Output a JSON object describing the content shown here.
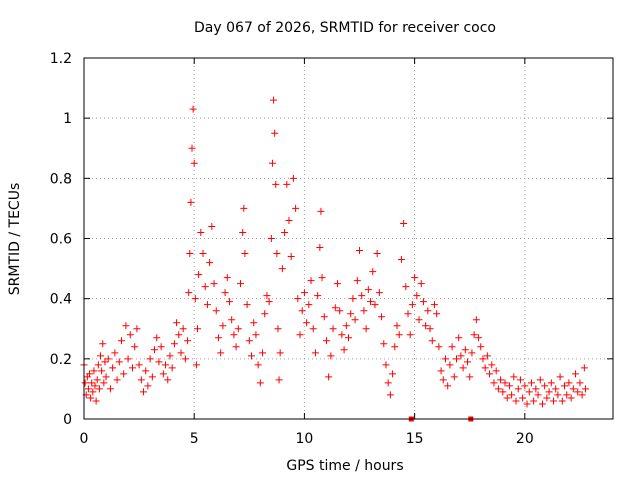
{
  "chart_data": {
    "type": "scatter",
    "title": "Day 067 of 2026, SRMTID for receiver coco",
    "xlabel": "GPS time / hours",
    "ylabel": "SRMTID / TECUs",
    "xlim": [
      0,
      24
    ],
    "ylim": [
      0,
      1.2
    ],
    "xticks": [
      0,
      5,
      10,
      15,
      20
    ],
    "xtick_labels": [
      "0",
      "5",
      "10",
      "15",
      "20"
    ],
    "yticks": [
      0,
      0.2,
      0.4,
      0.6,
      0.8,
      1.0,
      1.2
    ],
    "ytick_labels": [
      "0",
      "0.2",
      "0.4",
      "0.6",
      "0.8",
      "1",
      "1.2"
    ],
    "grid": true,
    "marker": "+",
    "series_color": "#ff0000",
    "series": [
      {
        "name": "SRMTID",
        "points": [
          [
            0.0,
            0.18
          ],
          [
            0.05,
            0.12
          ],
          [
            0.1,
            0.08
          ],
          [
            0.15,
            0.14
          ],
          [
            0.2,
            0.1
          ],
          [
            0.25,
            0.15
          ],
          [
            0.3,
            0.07
          ],
          [
            0.35,
            0.12
          ],
          [
            0.4,
            0.09
          ],
          [
            0.45,
            0.16
          ],
          [
            0.5,
            0.11
          ],
          [
            0.55,
            0.06
          ],
          [
            0.6,
            0.13
          ],
          [
            0.65,
            0.18
          ],
          [
            0.7,
            0.1
          ],
          [
            0.75,
            0.21
          ],
          [
            0.8,
            0.16
          ],
          [
            0.85,
            0.25
          ],
          [
            0.9,
            0.12
          ],
          [
            0.95,
            0.19
          ],
          [
            1.0,
            0.14
          ],
          [
            1.1,
            0.2
          ],
          [
            1.2,
            0.1
          ],
          [
            1.3,
            0.17
          ],
          [
            1.4,
            0.22
          ],
          [
            1.5,
            0.13
          ],
          [
            1.6,
            0.19
          ],
          [
            1.7,
            0.26
          ],
          [
            1.8,
            0.15
          ],
          [
            1.9,
            0.31
          ],
          [
            2.0,
            0.2
          ],
          [
            2.1,
            0.28
          ],
          [
            2.2,
            0.17
          ],
          [
            2.3,
            0.24
          ],
          [
            2.4,
            0.3
          ],
          [
            2.5,
            0.18
          ],
          [
            2.6,
            0.13
          ],
          [
            2.7,
            0.09
          ],
          [
            2.8,
            0.16
          ],
          [
            2.9,
            0.11
          ],
          [
            3.0,
            0.2
          ],
          [
            3.1,
            0.14
          ],
          [
            3.2,
            0.23
          ],
          [
            3.3,
            0.27
          ],
          [
            3.4,
            0.19
          ],
          [
            3.5,
            0.24
          ],
          [
            3.6,
            0.15
          ],
          [
            3.7,
            0.18
          ],
          [
            3.8,
            0.13
          ],
          [
            3.9,
            0.21
          ],
          [
            4.0,
            0.17
          ],
          [
            4.1,
            0.25
          ],
          [
            4.2,
            0.32
          ],
          [
            4.3,
            0.28
          ],
          [
            4.4,
            0.22
          ],
          [
            4.5,
            0.3
          ],
          [
            4.6,
            0.2
          ],
          [
            4.7,
            0.26
          ],
          [
            4.75,
            0.42
          ],
          [
            4.8,
            0.55
          ],
          [
            4.85,
            0.72
          ],
          [
            4.9,
            0.9
          ],
          [
            4.95,
            1.03
          ],
          [
            5.0,
            0.85
          ],
          [
            5.05,
            0.4
          ],
          [
            5.1,
            0.18
          ],
          [
            5.15,
            0.3
          ],
          [
            5.2,
            0.48
          ],
          [
            5.3,
            0.62
          ],
          [
            5.4,
            0.55
          ],
          [
            5.5,
            0.44
          ],
          [
            5.6,
            0.38
          ],
          [
            5.7,
            0.52
          ],
          [
            5.8,
            0.64
          ],
          [
            5.9,
            0.45
          ],
          [
            6.0,
            0.36
          ],
          [
            6.1,
            0.27
          ],
          [
            6.2,
            0.22
          ],
          [
            6.3,
            0.31
          ],
          [
            6.4,
            0.42
          ],
          [
            6.5,
            0.47
          ],
          [
            6.6,
            0.39
          ],
          [
            6.7,
            0.33
          ],
          [
            6.8,
            0.28
          ],
          [
            6.9,
            0.24
          ],
          [
            7.0,
            0.3
          ],
          [
            7.1,
            0.45
          ],
          [
            7.2,
            0.62
          ],
          [
            7.25,
            0.7
          ],
          [
            7.3,
            0.55
          ],
          [
            7.4,
            0.38
          ],
          [
            7.5,
            0.26
          ],
          [
            7.6,
            0.21
          ],
          [
            7.7,
            0.32
          ],
          [
            7.8,
            0.28
          ],
          [
            7.9,
            0.18
          ],
          [
            8.0,
            0.12
          ],
          [
            8.1,
            0.22
          ],
          [
            8.2,
            0.35
          ],
          [
            8.3,
            0.41
          ],
          [
            8.4,
            0.39
          ],
          [
            8.5,
            0.6
          ],
          [
            8.55,
            0.85
          ],
          [
            8.6,
            1.06
          ],
          [
            8.65,
            0.95
          ],
          [
            8.7,
            0.78
          ],
          [
            8.75,
            0.55
          ],
          [
            8.8,
            0.3
          ],
          [
            8.85,
            0.13
          ],
          [
            8.9,
            0.22
          ],
          [
            9.0,
            0.5
          ],
          [
            9.1,
            0.62
          ],
          [
            9.2,
            0.78
          ],
          [
            9.3,
            0.66
          ],
          [
            9.4,
            0.54
          ],
          [
            9.5,
            0.8
          ],
          [
            9.6,
            0.7
          ],
          [
            9.7,
            0.4
          ],
          [
            9.8,
            0.28
          ],
          [
            9.9,
            0.36
          ],
          [
            10.0,
            0.42
          ],
          [
            10.1,
            0.32
          ],
          [
            10.2,
            0.38
          ],
          [
            10.3,
            0.46
          ],
          [
            10.4,
            0.3
          ],
          [
            10.5,
            0.22
          ],
          [
            10.6,
            0.41
          ],
          [
            10.7,
            0.57
          ],
          [
            10.75,
            0.69
          ],
          [
            10.8,
            0.47
          ],
          [
            10.9,
            0.34
          ],
          [
            11.0,
            0.26
          ],
          [
            11.1,
            0.14
          ],
          [
            11.2,
            0.21
          ],
          [
            11.3,
            0.3
          ],
          [
            11.4,
            0.37
          ],
          [
            11.5,
            0.45
          ],
          [
            11.6,
            0.36
          ],
          [
            11.7,
            0.28
          ],
          [
            11.8,
            0.23
          ],
          [
            11.9,
            0.31
          ],
          [
            12.0,
            0.27
          ],
          [
            12.1,
            0.35
          ],
          [
            12.2,
            0.4
          ],
          [
            12.3,
            0.33
          ],
          [
            12.4,
            0.46
          ],
          [
            12.5,
            0.56
          ],
          [
            12.6,
            0.41
          ],
          [
            12.7,
            0.36
          ],
          [
            12.8,
            0.3
          ],
          [
            12.9,
            0.43
          ],
          [
            13.0,
            0.39
          ],
          [
            13.1,
            0.49
          ],
          [
            13.2,
            0.38
          ],
          [
            13.3,
            0.55
          ],
          [
            13.4,
            0.42
          ],
          [
            13.5,
            0.34
          ],
          [
            13.6,
            0.25
          ],
          [
            13.7,
            0.18
          ],
          [
            13.8,
            0.12
          ],
          [
            13.9,
            0.08
          ],
          [
            14.0,
            0.15
          ],
          [
            14.1,
            0.24
          ],
          [
            14.2,
            0.31
          ],
          [
            14.3,
            0.28
          ],
          [
            14.4,
            0.53
          ],
          [
            14.5,
            0.65
          ],
          [
            14.6,
            0.44
          ],
          [
            14.7,
            0.35
          ],
          [
            14.8,
            0.28
          ],
          [
            14.9,
            0.38
          ],
          [
            15.0,
            0.47
          ],
          [
            15.1,
            0.41
          ],
          [
            15.2,
            0.33
          ],
          [
            15.3,
            0.45
          ],
          [
            15.4,
            0.39
          ],
          [
            15.5,
            0.31
          ],
          [
            15.6,
            0.36
          ],
          [
            15.7,
            0.3
          ],
          [
            15.8,
            0.26
          ],
          [
            15.9,
            0.38
          ],
          [
            16.0,
            0.35
          ],
          [
            16.1,
            0.24
          ],
          [
            16.2,
            0.16
          ],
          [
            16.3,
            0.13
          ],
          [
            16.4,
            0.2
          ],
          [
            16.5,
            0.11
          ],
          [
            16.6,
            0.18
          ],
          [
            16.7,
            0.24
          ],
          [
            16.8,
            0.14
          ],
          [
            16.9,
            0.2
          ],
          [
            17.0,
            0.27
          ],
          [
            17.1,
            0.21
          ],
          [
            17.2,
            0.17
          ],
          [
            17.3,
            0.23
          ],
          [
            17.4,
            0.19
          ],
          [
            17.5,
            0.14
          ],
          [
            17.6,
            0.22
          ],
          [
            17.7,
            0.28
          ],
          [
            17.8,
            0.33
          ],
          [
            17.9,
            0.27
          ],
          [
            18.0,
            0.24
          ],
          [
            18.1,
            0.2
          ],
          [
            18.2,
            0.17
          ],
          [
            18.3,
            0.21
          ],
          [
            18.4,
            0.15
          ],
          [
            18.5,
            0.18
          ],
          [
            18.6,
            0.12
          ],
          [
            18.7,
            0.16
          ],
          [
            18.8,
            0.1
          ],
          [
            18.9,
            0.13
          ],
          [
            19.0,
            0.09
          ],
          [
            19.1,
            0.12
          ],
          [
            19.2,
            0.07
          ],
          [
            19.3,
            0.11
          ],
          [
            19.4,
            0.08
          ],
          [
            19.5,
            0.14
          ],
          [
            19.6,
            0.06
          ],
          [
            19.7,
            0.1
          ],
          [
            19.8,
            0.13
          ],
          [
            19.9,
            0.07
          ],
          [
            20.0,
            0.11
          ],
          [
            20.1,
            0.05
          ],
          [
            20.2,
            0.09
          ],
          [
            20.3,
            0.12
          ],
          [
            20.4,
            0.06
          ],
          [
            20.5,
            0.1
          ],
          [
            20.6,
            0.08
          ],
          [
            20.7,
            0.13
          ],
          [
            20.8,
            0.05
          ],
          [
            20.9,
            0.11
          ],
          [
            21.0,
            0.07
          ],
          [
            21.1,
            0.09
          ],
          [
            21.2,
            0.12
          ],
          [
            21.3,
            0.06
          ],
          [
            21.4,
            0.1
          ],
          [
            21.5,
            0.08
          ],
          [
            21.6,
            0.14
          ],
          [
            21.7,
            0.06
          ],
          [
            21.8,
            0.11
          ],
          [
            21.9,
            0.08
          ],
          [
            22.0,
            0.12
          ],
          [
            22.1,
            0.07
          ],
          [
            22.2,
            0.1
          ],
          [
            22.3,
            0.15
          ],
          [
            22.4,
            0.09
          ],
          [
            22.5,
            0.12
          ],
          [
            22.6,
            0.08
          ],
          [
            22.7,
            0.17
          ],
          [
            22.75,
            0.1
          ]
        ]
      }
    ],
    "filled_markers": [
      [
        14.85,
        0.0
      ],
      [
        17.55,
        0.0
      ]
    ]
  }
}
